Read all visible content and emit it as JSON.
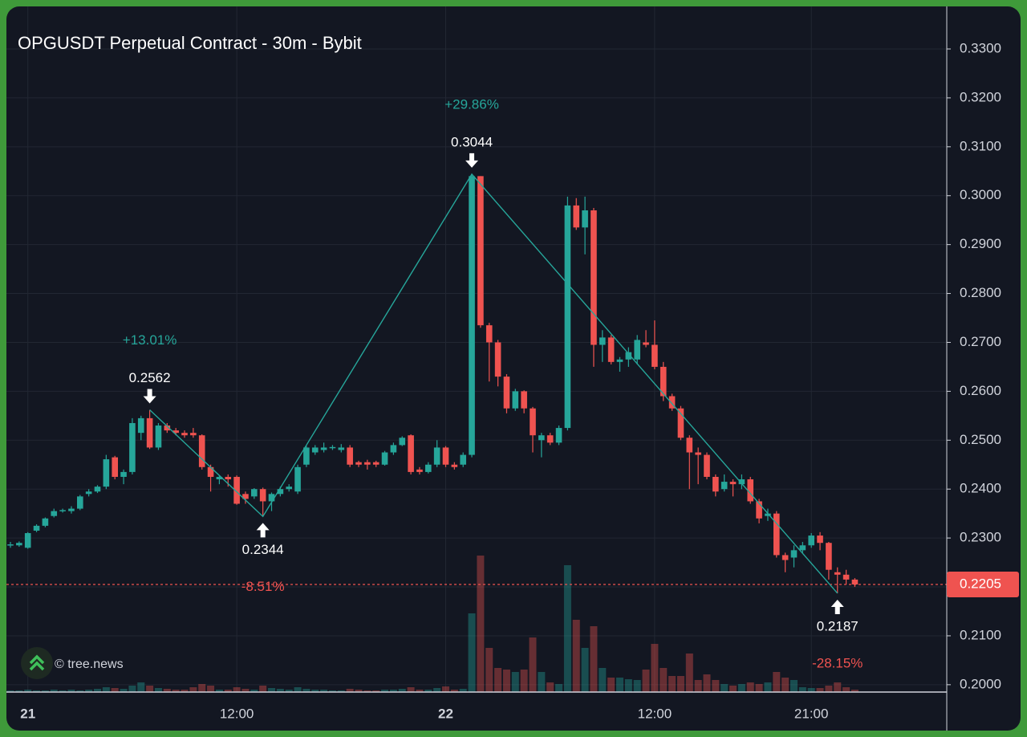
{
  "chart_data": {
    "type": "candlestick",
    "title": "OPGUSDT Perpetual Contract - 30m - Bybit",
    "watermark": "© tree.news",
    "categories": [
      null,
      null,
      "21",
      null,
      null,
      null,
      null,
      null,
      null,
      null,
      null,
      null,
      null,
      null,
      null,
      null,
      null,
      null,
      null,
      null,
      null,
      null,
      null,
      null,
      null,
      null,
      "12:00",
      null,
      null,
      null,
      null,
      null,
      null,
      null,
      null,
      null,
      null,
      null,
      null,
      null,
      null,
      null,
      null,
      null,
      null,
      null,
      null,
      null,
      null,
      null,
      "22",
      null,
      null,
      null,
      null,
      null,
      null,
      null,
      null,
      null,
      null,
      null,
      null,
      null,
      null,
      null,
      null,
      null,
      null,
      null,
      null,
      null,
      null,
      null,
      "12:00",
      null,
      null,
      null,
      null,
      null,
      null,
      null,
      null,
      null,
      null,
      null,
      null,
      null,
      null,
      null,
      null,
      null,
      "21:00",
      null,
      null,
      null,
      null,
      null
    ],
    "open": [
      0.2285,
      0.2285,
      0.228,
      0.2315,
      0.2325,
      0.2345,
      0.2355,
      0.2355,
      0.236,
      0.239,
      0.2395,
      0.2405,
      0.2465,
      0.2425,
      0.2435,
      0.2515,
      0.2545,
      0.2485,
      0.253,
      0.252,
      0.2515,
      0.2515,
      0.251,
      0.2445,
      0.242,
      0.2425,
      0.2425,
      0.239,
      0.2385,
      0.24,
      0.2375,
      0.239,
      0.24,
      0.2395,
      0.245,
      0.2475,
      0.248,
      0.2485,
      0.248,
      0.2485,
      0.2455,
      0.2455,
      0.2455,
      0.245,
      0.2475,
      0.249,
      0.251,
      0.244,
      0.2435,
      0.245,
      0.2485,
      0.245,
      0.245,
      0.247,
      0.304,
      0.2735,
      0.27,
      0.263,
      0.2565,
      0.26,
      0.2565,
      0.25,
      0.251,
      0.2495,
      0.2525,
      0.298,
      0.2935,
      0.297,
      0.2695,
      0.271,
      0.266,
      0.2665,
      0.2665,
      0.27,
      0.2695,
      0.265,
      0.259,
      0.2565,
      0.2505,
      0.2475,
      0.247,
      0.2425,
      0.24,
      0.2415,
      0.241,
      0.242,
      0.2375,
      0.2345,
      0.235,
      0.2265,
      0.226,
      0.2275,
      0.2285,
      0.2305,
      0.229,
      0.223,
      0.2225,
      0.2215
    ],
    "high": [
      0.2292,
      0.2293,
      0.2312,
      0.2328,
      0.2342,
      0.236,
      0.236,
      0.2365,
      0.2388,
      0.24,
      0.2408,
      0.247,
      0.2468,
      0.244,
      0.2545,
      0.255,
      0.2562,
      0.2535,
      0.2535,
      0.2525,
      0.252,
      0.2525,
      0.2512,
      0.245,
      0.2428,
      0.243,
      0.2428,
      0.2395,
      0.2402,
      0.2403,
      0.2393,
      0.2405,
      0.241,
      0.245,
      0.2488,
      0.249,
      0.2495,
      0.249,
      0.2492,
      0.249,
      0.2458,
      0.246,
      0.2458,
      0.2478,
      0.2495,
      0.2508,
      0.2512,
      0.2445,
      0.2455,
      0.25,
      0.2488,
      0.2455,
      0.2475,
      0.3044,
      0.304,
      0.274,
      0.2705,
      0.2635,
      0.2605,
      0.2602,
      0.2568,
      0.2515,
      0.2515,
      0.253,
      0.2998,
      0.2995,
      0.2998,
      0.2975,
      0.2725,
      0.2715,
      0.267,
      0.269,
      0.2715,
      0.2725,
      0.2745,
      0.266,
      0.2595,
      0.257,
      0.251,
      0.2485,
      0.2475,
      0.243,
      0.243,
      0.242,
      0.243,
      0.2425,
      0.238,
      0.236,
      0.2355,
      0.227,
      0.2285,
      0.2292,
      0.231,
      0.2312,
      0.2292,
      0.224,
      0.2235,
      0.2218
    ],
    "low": [
      0.228,
      0.2282,
      0.2278,
      0.2312,
      0.2322,
      0.2342,
      0.2352,
      0.235,
      0.2357,
      0.2385,
      0.2392,
      0.24,
      0.242,
      0.241,
      0.243,
      0.25,
      0.2482,
      0.248,
      0.2515,
      0.251,
      0.2505,
      0.2505,
      0.244,
      0.2395,
      0.241,
      0.2405,
      0.2368,
      0.237,
      0.238,
      0.2344,
      0.2355,
      0.2385,
      0.2395,
      0.239,
      0.2445,
      0.247,
      0.2475,
      0.248,
      0.2475,
      0.2445,
      0.2445,
      0.244,
      0.2445,
      0.2448,
      0.247,
      0.2488,
      0.243,
      0.243,
      0.2432,
      0.2445,
      0.2445,
      0.244,
      0.2445,
      0.2465,
      0.273,
      0.262,
      0.261,
      0.2555,
      0.256,
      0.2555,
      0.2475,
      0.2465,
      0.249,
      0.249,
      0.252,
      0.293,
      0.288,
      0.265,
      0.266,
      0.2655,
      0.264,
      0.265,
      0.2655,
      0.269,
      0.2645,
      0.258,
      0.256,
      0.25,
      0.24,
      0.241,
      0.242,
      0.2385,
      0.2395,
      0.2385,
      0.24,
      0.237,
      0.233,
      0.2335,
      0.226,
      0.223,
      0.224,
      0.227,
      0.228,
      0.2275,
      0.2215,
      0.2187,
      0.2205,
      0.22
    ],
    "close": [
      0.2287,
      0.229,
      0.231,
      0.2325,
      0.234,
      0.2355,
      0.2357,
      0.236,
      0.2385,
      0.2395,
      0.2405,
      0.2461,
      0.2425,
      0.2435,
      0.2535,
      0.2545,
      0.2485,
      0.253,
      0.252,
      0.2515,
      0.251,
      0.251,
      0.2445,
      0.2425,
      0.2425,
      0.242,
      0.237,
      0.238,
      0.24,
      0.2375,
      0.239,
      0.24,
      0.2405,
      0.2445,
      0.2485,
      0.2485,
      0.2485,
      0.2486,
      0.2485,
      0.245,
      0.245,
      0.245,
      0.245,
      0.2475,
      0.249,
      0.2505,
      0.2435,
      0.2435,
      0.245,
      0.2485,
      0.245,
      0.2445,
      0.247,
      0.304,
      0.2735,
      0.27,
      0.263,
      0.2565,
      0.26,
      0.2565,
      0.251,
      0.251,
      0.2495,
      0.2525,
      0.298,
      0.2935,
      0.297,
      0.2695,
      0.271,
      0.266,
      0.2665,
      0.268,
      0.2705,
      0.2695,
      0.265,
      0.259,
      0.2565,
      0.2505,
      0.2475,
      0.247,
      0.2425,
      0.2395,
      0.2415,
      0.241,
      0.242,
      0.2375,
      0.234,
      0.235,
      0.2265,
      0.2255,
      0.2275,
      0.2285,
      0.2305,
      0.229,
      0.2235,
      0.2225,
      0.2215,
      0.2205
    ],
    "volume": [
      2,
      2,
      3,
      2,
      2,
      3,
      2,
      3,
      2,
      3,
      4,
      6,
      5,
      4,
      8,
      12,
      8,
      5,
      4,
      3,
      3,
      6,
      10,
      8,
      3,
      3,
      6,
      4,
      3,
      8,
      5,
      4,
      3,
      6,
      4,
      3,
      3,
      2,
      2,
      4,
      3,
      2,
      2,
      3,
      3,
      4,
      6,
      3,
      3,
      5,
      7,
      3,
      4,
      98,
      170,
      55,
      30,
      28,
      25,
      28,
      68,
      25,
      12,
      10,
      158,
      90,
      55,
      82,
      30,
      18,
      18,
      16,
      15,
      28,
      60,
      30,
      20,
      20,
      48,
      15,
      22,
      15,
      10,
      8,
      10,
      12,
      10,
      12,
      25,
      18,
      15,
      6,
      5,
      5,
      8,
      12,
      6,
      3
    ],
    "up_color": "#26a69a",
    "down_color": "#ef5350",
    "last_price": 0.2205,
    "pivots": [
      {
        "kind": "high",
        "value": 0.2562,
        "change": "+13.01%"
      },
      {
        "kind": "low",
        "value": 0.2344,
        "change": "-8.51%"
      },
      {
        "kind": "high",
        "value": 0.3044,
        "change": "+29.86%"
      },
      {
        "kind": "low",
        "value": 0.2187,
        "change": "-28.15%"
      }
    ],
    "ylim": [
      0.1985,
      0.3387
    ],
    "yticks": [
      {
        "value": 0.2,
        "label": "0.2000"
      },
      {
        "value": 0.21,
        "label": "0.2100"
      },
      {
        "value": 0.22,
        "label": "0.2200"
      },
      {
        "value": 0.23,
        "label": "0.2300"
      },
      {
        "value": 0.24,
        "label": "0.2400"
      },
      {
        "value": 0.25,
        "label": "0.2500"
      },
      {
        "value": 0.26,
        "label": "0.2600"
      },
      {
        "value": 0.27,
        "label": "0.2700"
      },
      {
        "value": 0.28,
        "label": "0.2800"
      },
      {
        "value": 0.29,
        "label": "0.2900"
      },
      {
        "value": 0.3,
        "label": "0.3000"
      },
      {
        "value": 0.31,
        "label": "0.3100"
      },
      {
        "value": 0.32,
        "label": "0.3200"
      },
      {
        "value": 0.33,
        "label": "0.3300"
      }
    ],
    "grid": true
  }
}
